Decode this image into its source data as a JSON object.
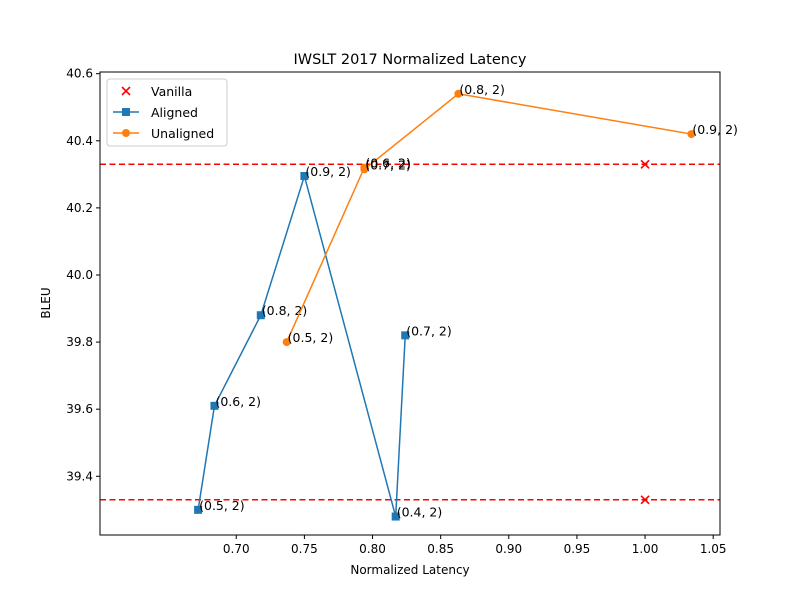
{
  "chart_data": {
    "type": "line",
    "title": "IWSLT 2017 Normalized Latency",
    "xlabel": "Normalized Latency",
    "ylabel": "BLEU",
    "xlim": [
      0.6,
      1.055
    ],
    "ylim": [
      39.225,
      40.605
    ],
    "xticks": [
      "0.70",
      "0.75",
      "0.80",
      "0.85",
      "0.90",
      "0.95",
      "1.00",
      "1.05"
    ],
    "yticks": [
      "39.4",
      "39.6",
      "39.8",
      "40.0",
      "40.2",
      "40.4",
      "40.6"
    ],
    "grid": false,
    "legend": "upper-left",
    "hlines": [
      {
        "y": 40.33,
        "color": "#ff0000",
        "style": "dashed"
      },
      {
        "y": 39.33,
        "color": "#ff0000",
        "style": "dashed"
      }
    ],
    "series": [
      {
        "name": "Vanilla",
        "kind": "scatter",
        "marker": "x",
        "color": "#ff0000",
        "points": [
          {
            "x": 1.0,
            "y": 40.33,
            "label": ""
          },
          {
            "x": 1.0,
            "y": 39.33,
            "label": ""
          }
        ]
      },
      {
        "name": "Aligned",
        "kind": "line",
        "marker": "square",
        "color": "#1f77b4",
        "points": [
          {
            "x": 0.672,
            "y": 39.3,
            "label": "(0.5, 2)"
          },
          {
            "x": 0.684,
            "y": 39.61,
            "label": "(0.6, 2)"
          },
          {
            "x": 0.718,
            "y": 39.88,
            "label": "(0.8, 2)"
          },
          {
            "x": 0.75,
            "y": 40.295,
            "label": "(0.9, 2)"
          },
          {
            "x": 0.817,
            "y": 39.28,
            "label": "(0.4, 2)"
          },
          {
            "x": 0.824,
            "y": 39.82,
            "label": "(0.7, 2)"
          }
        ]
      },
      {
        "name": "Unaligned",
        "kind": "line",
        "marker": "circle",
        "color": "#ff7f0e",
        "points": [
          {
            "x": 0.737,
            "y": 39.8,
            "label": "(0.5, 2)"
          },
          {
            "x": 0.794,
            "y": 40.32,
            "label": "(0.6, 2)"
          },
          {
            "x": 0.794,
            "y": 40.315,
            "label": "(0.7, 2)"
          },
          {
            "x": 0.863,
            "y": 40.54,
            "label": "(0.8, 2)"
          },
          {
            "x": 1.034,
            "y": 40.42,
            "label": "(0.9, 2)"
          }
        ]
      }
    ]
  }
}
